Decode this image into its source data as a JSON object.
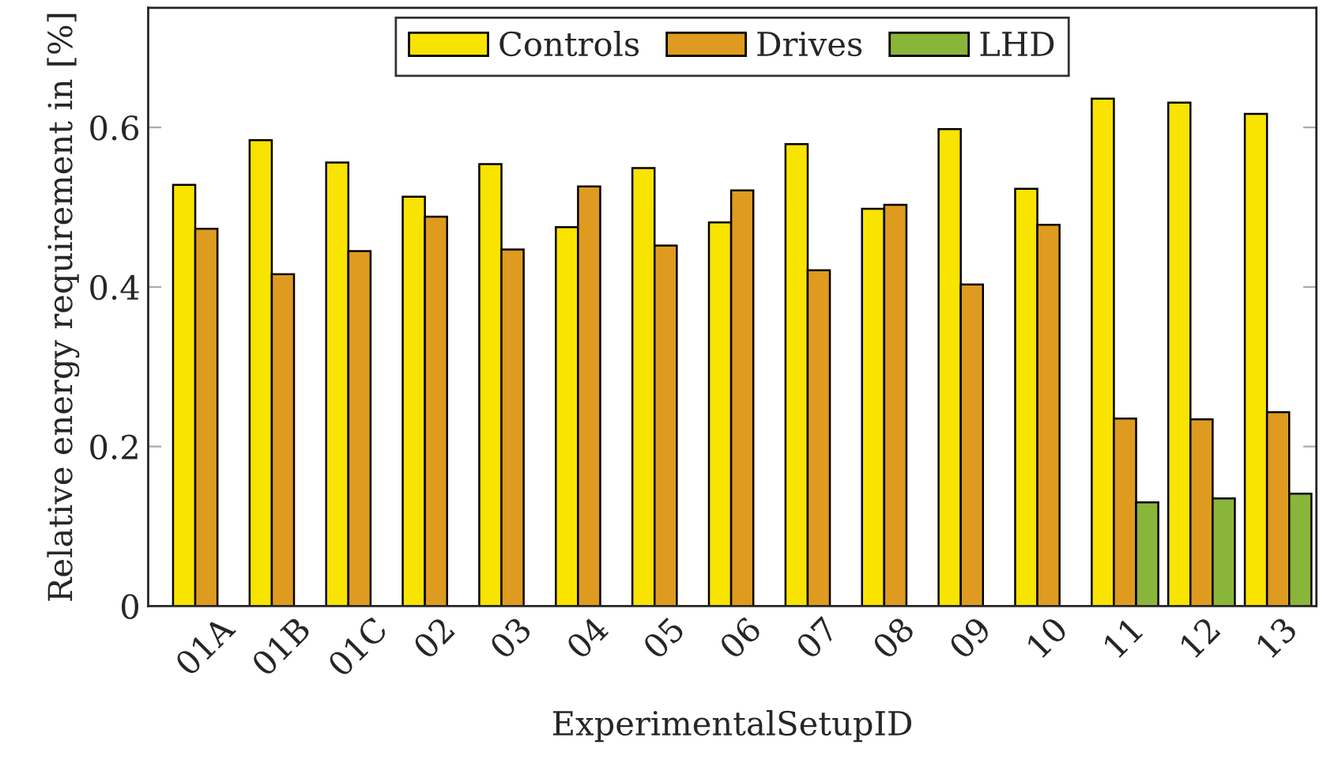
{
  "chart_data": {
    "type": "bar",
    "xlabel": "ExperimentalSetupID",
    "ylabel": "Relative energy requirement in [%]",
    "categories": [
      "01A",
      "01B",
      "01C",
      "02",
      "03",
      "04",
      "05",
      "06",
      "07",
      "08",
      "09",
      "10",
      "11",
      "12",
      "13"
    ],
    "series": [
      {
        "name": "Controls",
        "color": "#f9e300",
        "values": [
          0.528,
          0.584,
          0.556,
          0.513,
          0.554,
          0.475,
          0.549,
          0.481,
          0.579,
          0.498,
          0.598,
          0.523,
          0.636,
          0.631,
          0.617
        ]
      },
      {
        "name": "Drives",
        "color": "#df9b20",
        "values": [
          0.473,
          0.416,
          0.445,
          0.488,
          0.447,
          0.526,
          0.452,
          0.521,
          0.421,
          0.503,
          0.403,
          0.478,
          0.235,
          0.234,
          0.243
        ]
      },
      {
        "name": "LHD",
        "color": "#8ab53b",
        "values": [
          null,
          null,
          null,
          null,
          null,
          null,
          null,
          null,
          null,
          null,
          null,
          null,
          0.13,
          0.135,
          0.141
        ]
      }
    ],
    "ylim": [
      0,
      0.75
    ],
    "yticks": [
      0,
      0.2,
      0.4,
      0.6
    ],
    "grid": false,
    "legend": "top"
  }
}
